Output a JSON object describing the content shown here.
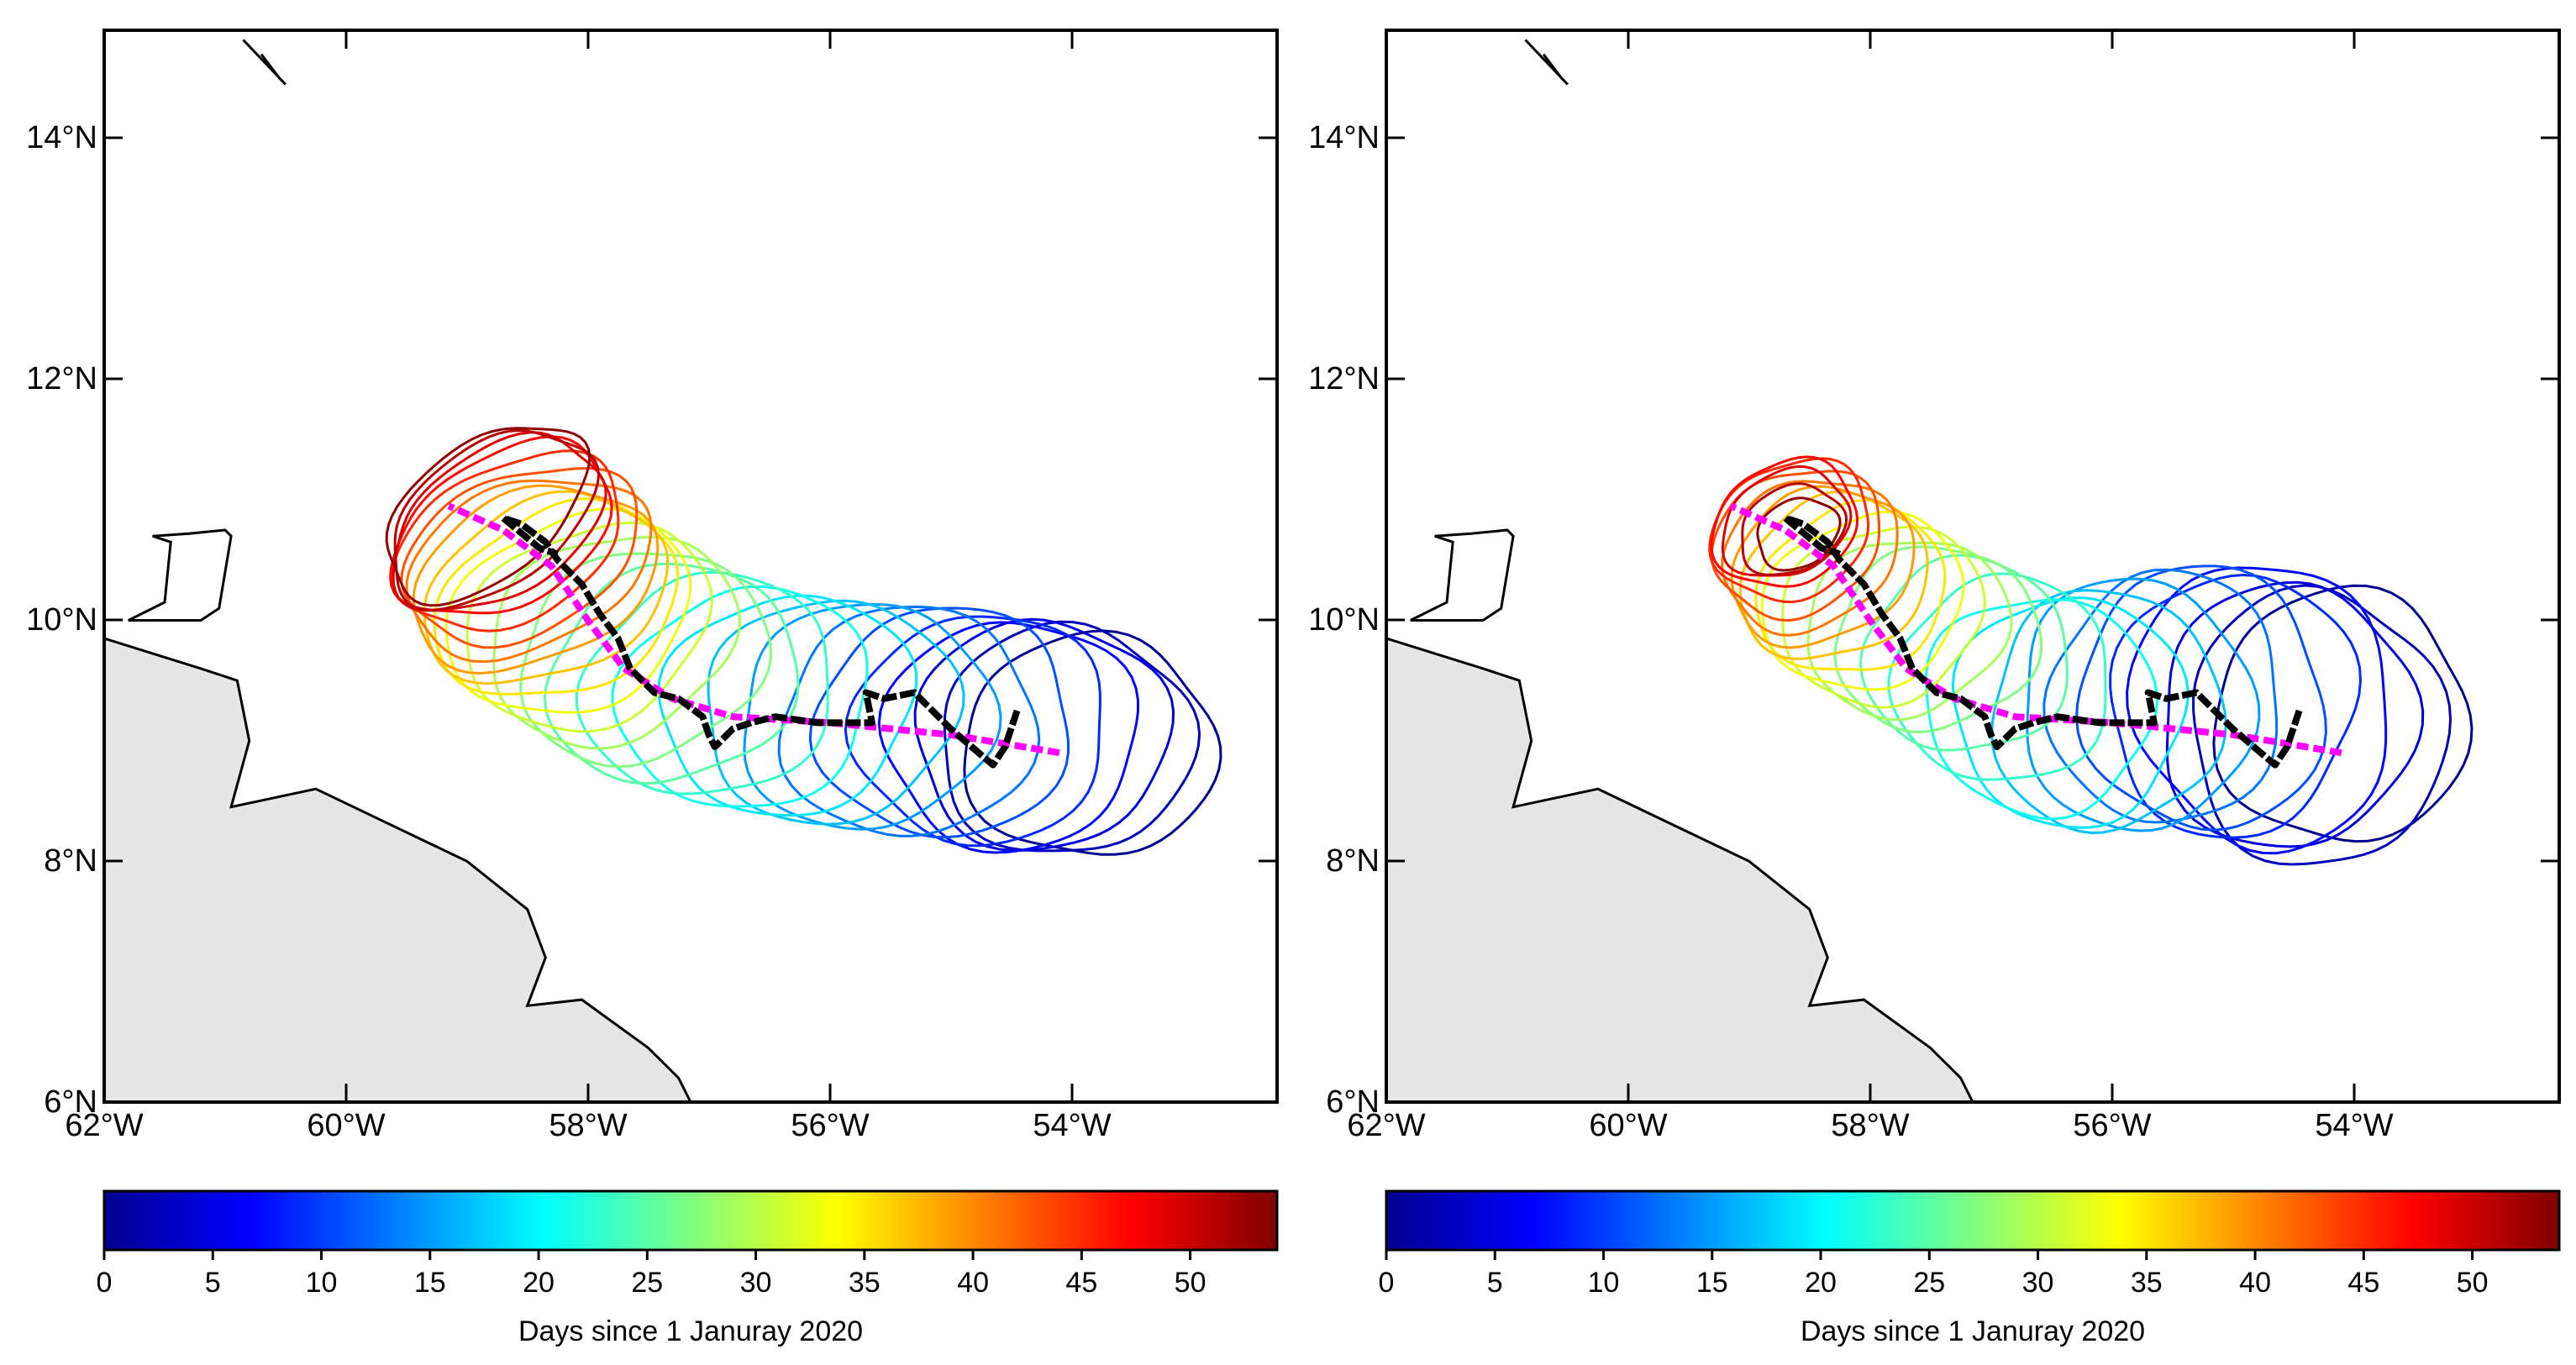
{
  "colors": {
    "land_fill": "#e6e6e6",
    "coast_stroke": "#000000",
    "observed_track": "#000000",
    "model_track": "#ff00ff"
  },
  "panels": [
    {
      "name": "left",
      "x_ticks": [
        "62°W",
        "60°W",
        "58°W",
        "56°W",
        "54°W"
      ],
      "y_ticks": [
        "6°N",
        "8°N",
        "10°N",
        "12°N",
        "14°N"
      ],
      "colorbar": {
        "ticks": [
          "0",
          "5",
          "10",
          "15",
          "20",
          "25",
          "30",
          "35",
          "40",
          "45",
          "50"
        ],
        "label": "Days since 1 Januray 2020"
      }
    },
    {
      "name": "right",
      "x_ticks": [
        "62°W",
        "60°W",
        "58°W",
        "56°W",
        "54°W"
      ],
      "y_ticks": [
        "6°N",
        "8°N",
        "10°N",
        "12°N",
        "14°N"
      ],
      "colorbar": {
        "ticks": [
          "0",
          "5",
          "10",
          "15",
          "20",
          "25",
          "30",
          "35",
          "40",
          "45",
          "50"
        ],
        "label": "Days since 1 Januray 2020"
      }
    }
  ],
  "chart_data": {
    "type": "map",
    "lon_range": [
      -62,
      -52.3
    ],
    "lat_range": [
      6,
      14.9
    ],
    "colorbar_range": [
      0,
      54
    ],
    "colormap": "jet",
    "panels": [
      {
        "name": "left",
        "observed_track": [
          [
            -54.45,
            9.25
          ],
          [
            -54.55,
            8.95
          ],
          [
            -54.65,
            8.8
          ],
          [
            -55.0,
            9.1
          ],
          [
            -55.3,
            9.4
          ],
          [
            -55.55,
            9.35
          ],
          [
            -55.7,
            9.4
          ],
          [
            -55.65,
            9.15
          ],
          [
            -56.1,
            9.15
          ],
          [
            -56.45,
            9.2
          ],
          [
            -56.65,
            9.15
          ],
          [
            -56.8,
            9.1
          ],
          [
            -56.95,
            8.95
          ],
          [
            -57.0,
            9.05
          ],
          [
            -57.05,
            9.2
          ],
          [
            -57.25,
            9.35
          ],
          [
            -57.45,
            9.4
          ],
          [
            -57.65,
            9.6
          ],
          [
            -57.75,
            9.85
          ],
          [
            -57.9,
            10.05
          ],
          [
            -58.05,
            10.3
          ],
          [
            -58.25,
            10.5
          ],
          [
            -58.35,
            10.65
          ],
          [
            -58.55,
            10.8
          ],
          [
            -58.7,
            10.85
          ],
          [
            -58.4,
            10.6
          ],
          [
            -58.25,
            10.55
          ]
        ],
        "model_track": [
          [
            -54.1,
            8.9
          ],
          [
            -55.0,
            9.05
          ],
          [
            -56.0,
            9.15
          ],
          [
            -56.8,
            9.2
          ],
          [
            -57.3,
            9.35
          ],
          [
            -57.7,
            9.6
          ],
          [
            -58.0,
            10.0
          ],
          [
            -58.3,
            10.45
          ],
          [
            -58.7,
            10.75
          ],
          [
            -59.15,
            10.95
          ]
        ],
        "contours": [
          {
            "day": 1,
            "lon": -53.85,
            "lat": 8.95,
            "rx": 1.05,
            "ry": 0.92,
            "rot": 0
          },
          {
            "day": 3,
            "lon": -54.05,
            "lat": 9.0,
            "rx": 1.05,
            "ry": 0.95,
            "rot": -3
          },
          {
            "day": 5,
            "lon": -54.25,
            "lat": 9.05,
            "rx": 1.05,
            "ry": 0.95,
            "rot": -5
          },
          {
            "day": 7,
            "lon": -54.5,
            "lat": 9.05,
            "rx": 1.05,
            "ry": 0.95,
            "rot": -5
          },
          {
            "day": 9,
            "lon": -54.75,
            "lat": 9.1,
            "rx": 1.05,
            "ry": 0.95,
            "rot": -6
          },
          {
            "day": 11,
            "lon": -55.05,
            "lat": 9.15,
            "rx": 1.05,
            "ry": 0.95,
            "rot": -7
          },
          {
            "day": 13,
            "lon": -55.35,
            "lat": 9.15,
            "rx": 1.05,
            "ry": 0.95,
            "rot": -8
          },
          {
            "day": 15,
            "lon": -55.7,
            "lat": 9.2,
            "rx": 1.05,
            "ry": 0.93,
            "rot": -10
          },
          {
            "day": 17,
            "lon": -56.0,
            "lat": 9.25,
            "rx": 1.05,
            "ry": 0.92,
            "rot": -12
          },
          {
            "day": 19,
            "lon": -56.35,
            "lat": 9.3,
            "rx": 1.05,
            "ry": 0.9,
            "rot": -14
          },
          {
            "day": 21,
            "lon": -56.7,
            "lat": 9.35,
            "rx": 1.05,
            "ry": 0.9,
            "rot": -16
          },
          {
            "day": 23,
            "lon": -57.0,
            "lat": 9.45,
            "rx": 1.05,
            "ry": 0.9,
            "rot": -18
          },
          {
            "day": 25,
            "lon": -57.3,
            "lat": 9.55,
            "rx": 1.05,
            "ry": 0.88,
            "rot": -20
          },
          {
            "day": 27,
            "lon": -57.55,
            "lat": 9.7,
            "rx": 1.05,
            "ry": 0.85,
            "rot": -22
          },
          {
            "day": 29,
            "lon": -57.8,
            "lat": 9.85,
            "rx": 1.05,
            "ry": 0.83,
            "rot": -24
          },
          {
            "day": 31,
            "lon": -58.0,
            "lat": 9.95,
            "rx": 1.05,
            "ry": 0.8,
            "rot": -25
          },
          {
            "day": 33,
            "lon": -58.15,
            "lat": 10.05,
            "rx": 1.05,
            "ry": 0.78,
            "rot": -25
          },
          {
            "day": 35,
            "lon": -58.25,
            "lat": 10.15,
            "rx": 1.05,
            "ry": 0.75,
            "rot": -24
          },
          {
            "day": 37,
            "lon": -58.35,
            "lat": 10.25,
            "rx": 1.05,
            "ry": 0.72,
            "rot": -23
          },
          {
            "day": 39,
            "lon": -58.45,
            "lat": 10.35,
            "rx": 1.05,
            "ry": 0.7,
            "rot": -22
          },
          {
            "day": 41,
            "lon": -58.5,
            "lat": 10.45,
            "rx": 1.05,
            "ry": 0.68,
            "rot": -22
          },
          {
            "day": 43,
            "lon": -58.55,
            "lat": 10.55,
            "rx": 1.02,
            "ry": 0.66,
            "rot": -24
          },
          {
            "day": 45,
            "lon": -58.65,
            "lat": 10.65,
            "rx": 1.0,
            "ry": 0.64,
            "rot": -27
          },
          {
            "day": 47,
            "lon": -58.7,
            "lat": 10.75,
            "rx": 0.98,
            "ry": 0.62,
            "rot": -30
          },
          {
            "day": 49,
            "lon": -58.75,
            "lat": 10.8,
            "rx": 0.96,
            "ry": 0.6,
            "rot": -33
          },
          {
            "day": 51,
            "lon": -58.8,
            "lat": 10.85,
            "rx": 0.95,
            "ry": 0.58,
            "rot": -36
          },
          {
            "day": 53,
            "lon": -58.85,
            "lat": 10.9,
            "rx": 0.95,
            "ry": 0.56,
            "rot": -38
          }
        ]
      },
      {
        "name": "right",
        "observed_track": [
          [
            -54.45,
            9.25
          ],
          [
            -54.55,
            8.95
          ],
          [
            -54.65,
            8.8
          ],
          [
            -55.0,
            9.1
          ],
          [
            -55.3,
            9.4
          ],
          [
            -55.55,
            9.35
          ],
          [
            -55.7,
            9.4
          ],
          [
            -55.65,
            9.15
          ],
          [
            -56.1,
            9.15
          ],
          [
            -56.45,
            9.2
          ],
          [
            -56.65,
            9.15
          ],
          [
            -56.8,
            9.1
          ],
          [
            -56.95,
            8.95
          ],
          [
            -57.0,
            9.05
          ],
          [
            -57.05,
            9.2
          ],
          [
            -57.25,
            9.35
          ],
          [
            -57.45,
            9.4
          ],
          [
            -57.65,
            9.6
          ],
          [
            -57.75,
            9.85
          ],
          [
            -57.9,
            10.05
          ],
          [
            -58.05,
            10.3
          ],
          [
            -58.25,
            10.5
          ],
          [
            -58.35,
            10.65
          ],
          [
            -58.55,
            10.8
          ],
          [
            -58.7,
            10.85
          ],
          [
            -58.4,
            10.6
          ],
          [
            -58.25,
            10.55
          ]
        ],
        "model_track": [
          [
            -54.1,
            8.9
          ],
          [
            -55.0,
            9.05
          ],
          [
            -56.0,
            9.15
          ],
          [
            -56.8,
            9.2
          ],
          [
            -57.3,
            9.35
          ],
          [
            -57.7,
            9.6
          ],
          [
            -58.0,
            10.0
          ],
          [
            -58.3,
            10.45
          ],
          [
            -58.7,
            10.75
          ],
          [
            -59.15,
            10.95
          ]
        ],
        "contours": [
          {
            "day": 1,
            "lon": -54.1,
            "lat": 9.2,
            "rx": 1.05,
            "ry": 1.05,
            "rot": 5
          },
          {
            "day": 3,
            "lon": -54.3,
            "lat": 9.1,
            "rx": 1.05,
            "ry": 1.15,
            "rot": -10
          },
          {
            "day": 5,
            "lon": -54.55,
            "lat": 9.2,
            "rx": 1.05,
            "ry": 1.1,
            "rot": 15
          },
          {
            "day": 7,
            "lon": -54.75,
            "lat": 9.3,
            "rx": 1.05,
            "ry": 1.2,
            "rot": -20
          },
          {
            "day": 9,
            "lon": -55.0,
            "lat": 9.3,
            "rx": 1.0,
            "ry": 1.1,
            "rot": 20
          },
          {
            "day": 11,
            "lon": -55.25,
            "lat": 9.35,
            "rx": 1.0,
            "ry": 1.1,
            "rot": -15
          },
          {
            "day": 13,
            "lon": -55.55,
            "lat": 9.35,
            "rx": 0.95,
            "ry": 1.05,
            "rot": 10
          },
          {
            "day": 15,
            "lon": -55.8,
            "lat": 9.3,
            "rx": 0.95,
            "ry": 1.05,
            "rot": -12
          },
          {
            "day": 17,
            "lon": -56.05,
            "lat": 9.25,
            "rx": 0.95,
            "ry": 1.0,
            "rot": 12
          },
          {
            "day": 19,
            "lon": -56.35,
            "lat": 9.25,
            "rx": 0.95,
            "ry": 0.95,
            "rot": -10
          },
          {
            "day": 21,
            "lon": -56.6,
            "lat": 9.3,
            "rx": 0.95,
            "ry": 0.9,
            "rot": 10
          },
          {
            "day": 23,
            "lon": -56.9,
            "lat": 9.5,
            "rx": 0.9,
            "ry": 0.85,
            "rot": -15
          },
          {
            "day": 25,
            "lon": -57.2,
            "lat": 9.7,
            "rx": 0.85,
            "ry": 0.8,
            "rot": -10
          },
          {
            "day": 27,
            "lon": -57.45,
            "lat": 9.85,
            "rx": 0.85,
            "ry": 0.75,
            "rot": -15
          },
          {
            "day": 29,
            "lon": -57.7,
            "lat": 9.95,
            "rx": 0.85,
            "ry": 0.72,
            "rot": -18
          },
          {
            "day": 31,
            "lon": -57.9,
            "lat": 10.05,
            "rx": 0.85,
            "ry": 0.72,
            "rot": -20
          },
          {
            "day": 33,
            "lon": -58.05,
            "lat": 10.15,
            "rx": 0.85,
            "ry": 0.7,
            "rot": -22
          },
          {
            "day": 35,
            "lon": -58.15,
            "lat": 10.25,
            "rx": 0.8,
            "ry": 0.68,
            "rot": -24
          },
          {
            "day": 37,
            "lon": -58.3,
            "lat": 10.35,
            "rx": 0.8,
            "ry": 0.65,
            "rot": -25
          },
          {
            "day": 39,
            "lon": -58.4,
            "lat": 10.45,
            "rx": 0.78,
            "ry": 0.62,
            "rot": -25
          },
          {
            "day": 41,
            "lon": -58.5,
            "lat": 10.55,
            "rx": 0.75,
            "ry": 0.6,
            "rot": -26
          },
          {
            "day": 43,
            "lon": -58.6,
            "lat": 10.65,
            "rx": 0.72,
            "ry": 0.58,
            "rot": -27
          },
          {
            "day": 45,
            "lon": -58.65,
            "lat": 10.75,
            "rx": 0.68,
            "ry": 0.55,
            "rot": -28
          },
          {
            "day": 47,
            "lon": -58.7,
            "lat": 10.8,
            "rx": 0.62,
            "ry": 0.5,
            "rot": -28
          },
          {
            "day": 49,
            "lon": -58.7,
            "lat": 10.8,
            "rx": 0.55,
            "ry": 0.42,
            "rot": -28
          },
          {
            "day": 51,
            "lon": -58.65,
            "lat": 10.75,
            "rx": 0.45,
            "ry": 0.35,
            "rot": -28
          },
          {
            "day": 53,
            "lon": -58.6,
            "lat": 10.72,
            "rx": 0.35,
            "ry": 0.28,
            "rot": -28
          }
        ]
      }
    ],
    "land_south_america": [
      [
        -62,
        9.85
      ],
      [
        -61.2,
        9.6
      ],
      [
        -60.9,
        9.5
      ],
      [
        -60.8,
        9.0
      ],
      [
        -60.95,
        8.45
      ],
      [
        -60.25,
        8.6
      ],
      [
        -59.0,
        8.0
      ],
      [
        -58.5,
        7.6
      ],
      [
        -58.35,
        7.2
      ],
      [
        -58.5,
        6.8
      ],
      [
        -58.05,
        6.85
      ],
      [
        -57.5,
        6.45
      ],
      [
        -57.25,
        6.2
      ],
      [
        -57.15,
        6.0
      ],
      [
        -62,
        6.0
      ]
    ],
    "land_trinidad": [
      [
        -61.8,
        10.0
      ],
      [
        -61.6,
        10.0
      ],
      [
        -61.2,
        10.0
      ],
      [
        -61.05,
        10.1
      ],
      [
        -60.95,
        10.7
      ],
      [
        -61.0,
        10.75
      ],
      [
        -61.3,
        10.72
      ],
      [
        -61.6,
        10.7
      ],
      [
        -61.45,
        10.65
      ],
      [
        -61.5,
        10.15
      ]
    ],
    "land_tobago": [
      [
        -60.85,
        14.82
      ],
      [
        -60.5,
        14.45
      ],
      [
        -60.55,
        14.5
      ],
      [
        -60.7,
        14.7
      ]
    ]
  }
}
